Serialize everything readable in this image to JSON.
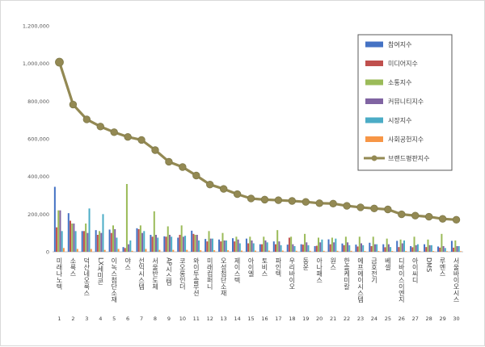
{
  "chart_data": {
    "type": "bar",
    "y_ticks": [
      "0",
      "200,000",
      "400,000",
      "600,000",
      "800,000",
      "1,000,000",
      "1,200,000"
    ],
    "ylim": [
      0,
      1200000
    ],
    "grid": false,
    "legend_position": "top-right",
    "categories": [
      "미래나노텍",
      "소룩스",
      "덕산네오룩스",
      "LX세미콘",
      "이녹스첨단소재",
      "야스",
      "선익시스템",
      "서울반도체",
      "AP시스템",
      "코오롱인더",
      "와이투솔루션",
      "미래컴퍼니",
      "오성첨단소재",
      "제이스텍",
      "아이엘",
      "토비스",
      "파인텍",
      "우리바이오",
      "동운",
      "아나패스",
      "원스",
      "한솔케미칼",
      "에프에이시스템",
      "금호전기",
      "베셀",
      "디바이스이엔지",
      "아이씨디",
      "DMS",
      "루멘스",
      "서울바이오시스"
    ],
    "ranks": [
      "1",
      "2",
      "3",
      "4",
      "5",
      "6",
      "7",
      "8",
      "9",
      "10",
      "11",
      "12",
      "13",
      "14",
      "15",
      "16",
      "17",
      "18",
      "19",
      "20",
      "21",
      "22",
      "23",
      "24",
      "25",
      "26",
      "27",
      "28",
      "29",
      "30"
    ],
    "series": [
      {
        "name": "참여지수",
        "color": "#4472c4",
        "render": "bar",
        "values": [
          345000,
          205000,
          110000,
          115000,
          118000,
          25000,
          125000,
          90000,
          82000,
          75000,
          112000,
          68000,
          65000,
          72000,
          70000,
          40000,
          55000,
          38000,
          40000,
          30000,
          66000,
          44000,
          38000,
          48000,
          40000,
          58000,
          30000,
          40000,
          28000,
          58000
        ]
      },
      {
        "name": "미디어지수",
        "color": "#c0504d",
        "render": "bar",
        "values": [
          130000,
          165000,
          110000,
          90000,
          100000,
          20000,
          120000,
          80000,
          80000,
          90000,
          95000,
          55000,
          55000,
          55000,
          45000,
          40000,
          40000,
          75000,
          38000,
          32000,
          40000,
          35000,
          28000,
          30000,
          24000,
          25000,
          24000,
          25000,
          22000,
          22000
        ]
      },
      {
        "name": "소통지수",
        "color": "#9bbb59",
        "render": "bar",
        "values": [
          220000,
          150000,
          150000,
          110000,
          140000,
          360000,
          140000,
          215000,
          135000,
          140000,
          90000,
          110000,
          100000,
          80000,
          80000,
          80000,
          115000,
          80000,
          95000,
          75000,
          75000,
          80000,
          80000,
          80000,
          70000,
          65000,
          80000,
          65000,
          95000,
          60000
        ]
      },
      {
        "name": "커뮤니티지수",
        "color": "#8064a2",
        "render": "bar",
        "values": [
          220000,
          150000,
          100000,
          100000,
          120000,
          40000,
          100000,
          90000,
          90000,
          80000,
          90000,
          70000,
          60000,
          65000,
          60000,
          60000,
          55000,
          40000,
          50000,
          50000,
          50000,
          50000,
          45000,
          40000,
          40000,
          45000,
          35000,
          35000,
          30000,
          30000
        ]
      },
      {
        "name": "시장지수",
        "color": "#4bacc6",
        "render": "bar",
        "values": [
          110000,
          110000,
          230000,
          200000,
          75000,
          60000,
          110000,
          75000,
          80000,
          85000,
          60000,
          70000,
          60000,
          45000,
          45000,
          50000,
          35000,
          30000,
          35000,
          65000,
          70000,
          35000,
          35000,
          40000,
          25000,
          60000,
          40000,
          35000,
          20000,
          30000
        ]
      },
      {
        "name": "사회공헌지수",
        "color": "#f79646",
        "render": "bar",
        "values": [
          20000,
          15000,
          15000,
          10000,
          15000,
          5000,
          15000,
          10000,
          10000,
          10000,
          8000,
          8000,
          8000,
          6000,
          6000,
          6000,
          6000,
          5000,
          5000,
          5000,
          5000,
          5000,
          4000,
          4000,
          4000,
          4000,
          4000,
          4000,
          3000,
          3000
        ]
      },
      {
        "name": "브랜드평판지수",
        "color": "#938953",
        "render": "line",
        "values": [
          1007000,
          782000,
          703000,
          665000,
          635000,
          610000,
          594000,
          540000,
          478000,
          450000,
          405000,
          357000,
          334000,
          306000,
          283000,
          277000,
          274000,
          270000,
          265000,
          258000,
          256000,
          244000,
          236000,
          230000,
          225000,
          199000,
          192000,
          186000,
          175000,
          170000
        ]
      }
    ]
  }
}
